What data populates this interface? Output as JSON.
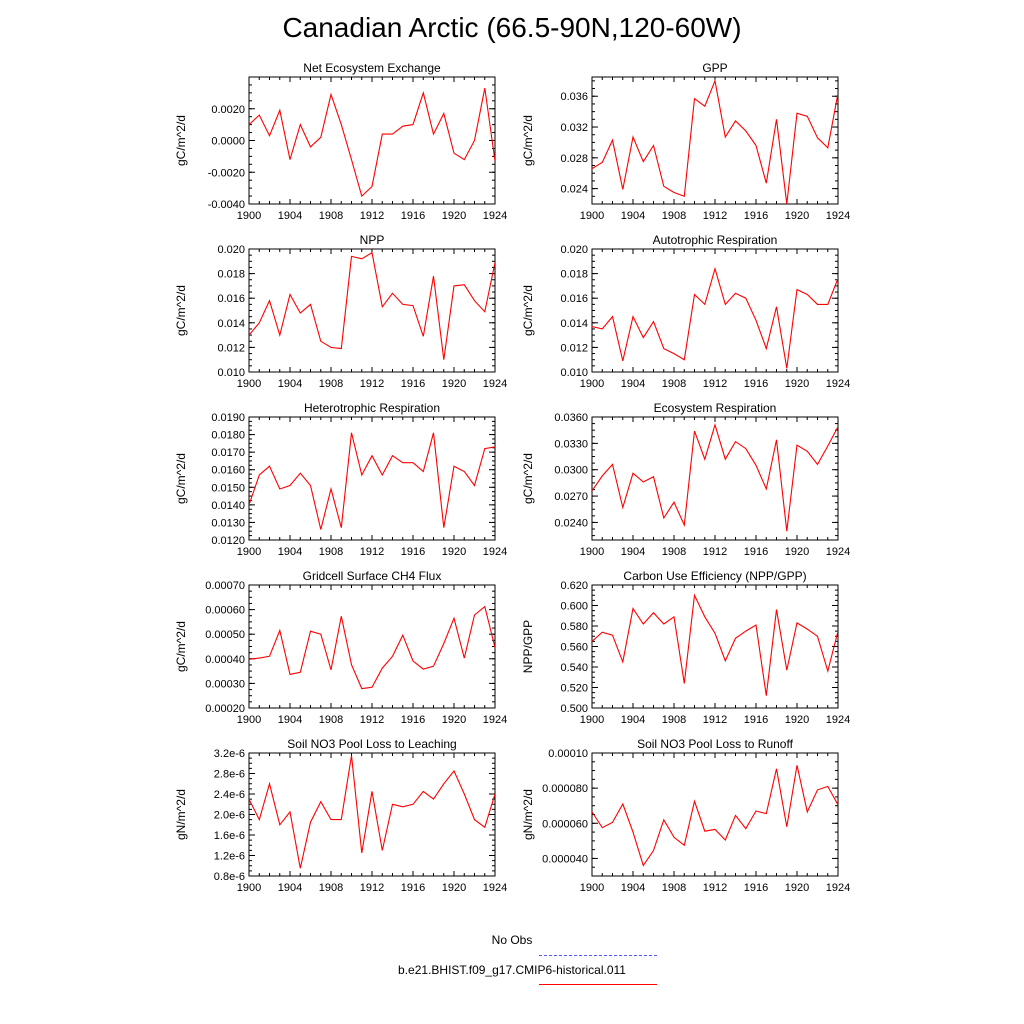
{
  "title": "Canadian Arctic (66.5-90N,120-60W)",
  "legend": {
    "obs_label": "No Obs",
    "obs_color": "#5555ff",
    "model_label": "b.e21.BHIST.f09_g17.CMIP6-historical.011",
    "model_color": "#ff0000"
  },
  "chart_data": [
    {
      "type": "line",
      "title": "Net Ecosystem Exchange",
      "ylabel": "gC/m^2/d",
      "x": [
        1900,
        1901,
        1902,
        1903,
        1904,
        1905,
        1906,
        1907,
        1908,
        1909,
        1910,
        1911,
        1912,
        1913,
        1914,
        1915,
        1916,
        1917,
        1918,
        1919,
        1920,
        1921,
        1922,
        1923,
        1924
      ],
      "values": [
        0.001,
        0.0016,
        0.0003,
        0.0019,
        -0.0012,
        0.001,
        -0.0004,
        0.0002,
        0.0029,
        0.001,
        -0.0012,
        -0.0035,
        -0.0029,
        0.0004,
        0.0004,
        0.0009,
        0.001,
        0.003,
        0.0004,
        0.0017,
        -0.0008,
        -0.0012,
        0.0,
        0.0033,
        -0.0013
      ],
      "xlim": [
        1900,
        1924
      ],
      "ylim": [
        -0.004,
        0.004
      ],
      "xticks": [
        "1900",
        "1904",
        "1908",
        "1912",
        "1916",
        "1920",
        "1924"
      ],
      "yticks": [
        "-0.0040",
        "-0.0020",
        "0.0000",
        "0.0020"
      ]
    },
    {
      "type": "line",
      "title": "GPP",
      "ylabel": "gC/m^2/d",
      "x": [
        1900,
        1901,
        1902,
        1903,
        1904,
        1905,
        1906,
        1907,
        1908,
        1909,
        1910,
        1911,
        1912,
        1913,
        1914,
        1915,
        1916,
        1917,
        1918,
        1919,
        1920,
        1921,
        1922,
        1923,
        1924
      ],
      "values": [
        0.0266,
        0.0274,
        0.0303,
        0.0239,
        0.0307,
        0.0275,
        0.0296,
        0.0243,
        0.0235,
        0.023,
        0.0357,
        0.0347,
        0.038,
        0.0307,
        0.0328,
        0.0315,
        0.0296,
        0.0247,
        0.033,
        0.022,
        0.0338,
        0.0334,
        0.0306,
        0.0293,
        0.0364
      ],
      "xlim": [
        1900,
        1924
      ],
      "ylim": [
        0.022,
        0.0385
      ],
      "xticks": [
        "1900",
        "1904",
        "1908",
        "1912",
        "1916",
        "1920",
        "1924"
      ],
      "yticks": [
        "0.024",
        "0.028",
        "0.032",
        "0.036"
      ]
    },
    {
      "type": "line",
      "title": "NPP",
      "ylabel": "gC/m^2/d",
      "x": [
        1900,
        1901,
        1902,
        1903,
        1904,
        1905,
        1906,
        1907,
        1908,
        1909,
        1910,
        1911,
        1912,
        1913,
        1914,
        1915,
        1916,
        1917,
        1918,
        1919,
        1920,
        1921,
        1922,
        1923,
        1924
      ],
      "values": [
        0.013,
        0.014,
        0.0158,
        0.013,
        0.0163,
        0.0148,
        0.0155,
        0.0125,
        0.012,
        0.0119,
        0.0194,
        0.0192,
        0.0197,
        0.0153,
        0.0164,
        0.0155,
        0.0154,
        0.0129,
        0.0178,
        0.011,
        0.017,
        0.0171,
        0.0158,
        0.0149,
        0.0189
      ],
      "xlim": [
        1900,
        1924
      ],
      "ylim": [
        0.01,
        0.02
      ],
      "xticks": [
        "1900",
        "1904",
        "1908",
        "1912",
        "1916",
        "1920",
        "1924"
      ],
      "yticks": [
        "0.010",
        "0.012",
        "0.014",
        "0.016",
        "0.018",
        "0.020"
      ]
    },
    {
      "type": "line",
      "title": "Autotrophic Respiration",
      "ylabel": "gC/m^2/d",
      "x": [
        1900,
        1901,
        1902,
        1903,
        1904,
        1905,
        1906,
        1907,
        1908,
        1909,
        1910,
        1911,
        1912,
        1913,
        1914,
        1915,
        1916,
        1917,
        1918,
        1919,
        1920,
        1921,
        1922,
        1923,
        1924
      ],
      "values": [
        0.0137,
        0.0135,
        0.0145,
        0.0109,
        0.0145,
        0.0128,
        0.0141,
        0.0119,
        0.0115,
        0.011,
        0.0163,
        0.0155,
        0.0184,
        0.0155,
        0.0164,
        0.016,
        0.0142,
        0.0119,
        0.0153,
        0.0103,
        0.0167,
        0.0163,
        0.0155,
        0.0155,
        0.0176
      ],
      "xlim": [
        1900,
        1924
      ],
      "ylim": [
        0.01,
        0.02
      ],
      "xticks": [
        "1900",
        "1904",
        "1908",
        "1912",
        "1916",
        "1920",
        "1924"
      ],
      "yticks": [
        "0.010",
        "0.012",
        "0.014",
        "0.016",
        "0.018",
        "0.020"
      ]
    },
    {
      "type": "line",
      "title": "Heterotrophic Respiration",
      "ylabel": "gC/m^2/d",
      "x": [
        1900,
        1901,
        1902,
        1903,
        1904,
        1905,
        1906,
        1907,
        1908,
        1909,
        1910,
        1911,
        1912,
        1913,
        1914,
        1915,
        1916,
        1917,
        1918,
        1919,
        1920,
        1921,
        1922,
        1923,
        1924
      ],
      "values": [
        0.014,
        0.0157,
        0.0162,
        0.0149,
        0.0151,
        0.0158,
        0.0151,
        0.0126,
        0.0149,
        0.0127,
        0.0181,
        0.0157,
        0.0168,
        0.0157,
        0.0168,
        0.0164,
        0.0164,
        0.0159,
        0.0181,
        0.0127,
        0.0162,
        0.0159,
        0.0151,
        0.0172,
        0.0173
      ],
      "xlim": [
        1900,
        1924
      ],
      "ylim": [
        0.012,
        0.019
      ],
      "xticks": [
        "1900",
        "1904",
        "1908",
        "1912",
        "1916",
        "1920",
        "1924"
      ],
      "yticks": [
        "0.0120",
        "0.0130",
        "0.0140",
        "0.0150",
        "0.0160",
        "0.0170",
        "0.0180",
        "0.0190"
      ]
    },
    {
      "type": "line",
      "title": "Ecosystem Respiration",
      "ylabel": "gC/m^2/d",
      "x": [
        1900,
        1901,
        1902,
        1903,
        1904,
        1905,
        1906,
        1907,
        1908,
        1909,
        1910,
        1911,
        1912,
        1913,
        1914,
        1915,
        1916,
        1917,
        1918,
        1919,
        1920,
        1921,
        1922,
        1923,
        1924
      ],
      "values": [
        0.0276,
        0.0293,
        0.0306,
        0.0257,
        0.0296,
        0.0286,
        0.0292,
        0.0245,
        0.0263,
        0.0237,
        0.0344,
        0.0312,
        0.0351,
        0.0312,
        0.0332,
        0.0324,
        0.0305,
        0.0278,
        0.0334,
        0.023,
        0.0328,
        0.0321,
        0.0306,
        0.0327,
        0.0349
      ],
      "xlim": [
        1900,
        1924
      ],
      "ylim": [
        0.022,
        0.036
      ],
      "xticks": [
        "1900",
        "1904",
        "1908",
        "1912",
        "1916",
        "1920",
        "1924"
      ],
      "yticks": [
        "0.0240",
        "0.0270",
        "0.0300",
        "0.0330",
        "0.0360"
      ]
    },
    {
      "type": "line",
      "title": "Gridcell Surface CH4 Flux",
      "ylabel": "gC/m^2/d",
      "x": [
        1900,
        1901,
        1902,
        1903,
        1904,
        1905,
        1906,
        1907,
        1908,
        1909,
        1910,
        1911,
        1912,
        1913,
        1914,
        1915,
        1916,
        1917,
        1918,
        1919,
        1920,
        1921,
        1922,
        1923,
        1924
      ],
      "values": [
        0.000398,
        0.000403,
        0.00041,
        0.000515,
        0.000337,
        0.000345,
        0.000512,
        0.0005,
        0.000355,
        0.000573,
        0.000376,
        0.000279,
        0.000284,
        0.000362,
        0.00041,
        0.000496,
        0.000391,
        0.000358,
        0.00037,
        0.000462,
        0.000565,
        0.000403,
        0.000578,
        0.000612,
        0.000446
      ],
      "xlim": [
        1900,
        1924
      ],
      "ylim": [
        0.0002,
        0.0007
      ],
      "xticks": [
        "1900",
        "1904",
        "1908",
        "1912",
        "1916",
        "1920",
        "1924"
      ],
      "yticks": [
        "0.00020",
        "0.00030",
        "0.00040",
        "0.00050",
        "0.00060",
        "0.00070"
      ]
    },
    {
      "type": "line",
      "title": "Carbon Use Efficiency (NPP/GPP)",
      "ylabel": "NPP/GPP",
      "x": [
        1900,
        1901,
        1902,
        1903,
        1904,
        1905,
        1906,
        1907,
        1908,
        1909,
        1910,
        1911,
        1912,
        1913,
        1914,
        1915,
        1916,
        1917,
        1918,
        1919,
        1920,
        1921,
        1922,
        1923,
        1924
      ],
      "values": [
        0.565,
        0.574,
        0.571,
        0.545,
        0.597,
        0.582,
        0.593,
        0.582,
        0.589,
        0.524,
        0.61,
        0.589,
        0.573,
        0.546,
        0.568,
        0.575,
        0.581,
        0.512,
        0.596,
        0.537,
        0.583,
        0.577,
        0.57,
        0.536,
        0.575
      ],
      "xlim": [
        1900,
        1924
      ],
      "ylim": [
        0.5,
        0.62
      ],
      "xticks": [
        "1900",
        "1904",
        "1908",
        "1912",
        "1916",
        "1920",
        "1924"
      ],
      "yticks": [
        "0.500",
        "0.520",
        "0.540",
        "0.560",
        "0.580",
        "0.600",
        "0.620"
      ]
    },
    {
      "type": "line",
      "title": "Soil NO3 Pool Loss to Leaching",
      "ylabel": "gN/m^2/d",
      "x": [
        1900,
        1901,
        1902,
        1903,
        1904,
        1905,
        1906,
        1907,
        1908,
        1909,
        1910,
        1911,
        1912,
        1913,
        1914,
        1915,
        1916,
        1917,
        1918,
        1919,
        1920,
        1921,
        1922,
        1923,
        1924
      ],
      "values": [
        2.3e-06,
        1.9e-06,
        2.6e-06,
        1.8e-06,
        2.05e-06,
        9.5e-07,
        1.85e-06,
        2.25e-06,
        1.9e-06,
        1.9e-06,
        3.15e-06,
        1.25e-06,
        2.45e-06,
        1.3e-06,
        2.2e-06,
        2.15e-06,
        2.2e-06,
        2.45e-06,
        2.3e-06,
        2.6e-06,
        2.85e-06,
        2.4e-06,
        1.9e-06,
        1.75e-06,
        2.4e-06
      ],
      "xlim": [
        1900,
        1924
      ],
      "ylim": [
        8e-07,
        3.2e-06
      ],
      "xticks": [
        "1900",
        "1904",
        "1908",
        "1912",
        "1916",
        "1920",
        "1924"
      ],
      "yticks": [
        "0.8e-6",
        "1.2e-6",
        "1.6e-6",
        "2.0e-6",
        "2.4e-6",
        "2.8e-6",
        "3.2e-6"
      ]
    },
    {
      "type": "line",
      "title": "Soil NO3 Pool Loss to Runoff",
      "ylabel": "gN/m^2/d",
      "x": [
        1900,
        1901,
        1902,
        1903,
        1904,
        1905,
        1906,
        1907,
        1908,
        1909,
        1910,
        1911,
        1912,
        1913,
        1914,
        1915,
        1916,
        1917,
        1918,
        1919,
        1920,
        1921,
        1922,
        1923,
        1924
      ],
      "values": [
        6.65e-05,
        5.75e-05,
        6.05e-05,
        7.1e-05,
        5.5e-05,
        3.6e-05,
        4.45e-05,
        6.2e-05,
        5.2e-05,
        4.75e-05,
        7.25e-05,
        5.55e-05,
        5.65e-05,
        5.05e-05,
        6.45e-05,
        5.7e-05,
        6.7e-05,
        6.55e-05,
        9.1e-05,
        5.8e-05,
        9.3e-05,
        6.65e-05,
        7.9e-05,
        8.1e-05,
        7.05e-05
      ],
      "xlim": [
        1900,
        1924
      ],
      "ylim": [
        3e-05,
        0.0001
      ],
      "xticks": [
        "1900",
        "1904",
        "1908",
        "1912",
        "1916",
        "1920",
        "1924"
      ],
      "yticks": [
        "0.000040",
        "0.000060",
        "0.000080",
        "0.00010"
      ]
    }
  ]
}
